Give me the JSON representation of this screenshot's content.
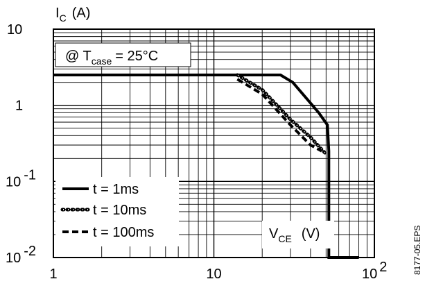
{
  "chart_data": {
    "type": "line",
    "x_scale": "log",
    "y_scale": "log",
    "xlim": [
      1,
      100
    ],
    "ylim": [
      0.01,
      10
    ],
    "grid": true,
    "y_axis_label": {
      "main": "I",
      "sub": "C",
      "unit": "(A)"
    },
    "x_axis_label": {
      "main": "V",
      "sub": "CE",
      "unit": "(V)"
    },
    "annotation": {
      "prefix": "@ T",
      "sub": "case",
      "suffix": "= 25°C"
    },
    "x_ticks": [
      {
        "value": 1,
        "label": "1"
      },
      {
        "value": 10,
        "label": "10"
      },
      {
        "value": 100,
        "base": "10",
        "exp": "2"
      }
    ],
    "y_ticks": [
      {
        "value": 10,
        "label": "10"
      },
      {
        "value": 1,
        "label": "1"
      },
      {
        "value": 0.1,
        "base": "10",
        "exp": "-1"
      },
      {
        "value": 0.01,
        "base": "10",
        "exp": "-2"
      }
    ],
    "legend_position": "bottom-left",
    "series": [
      {
        "name": "t = 1ms",
        "style": "solid",
        "x": [
          1,
          26,
          31,
          45,
          51,
          52,
          52,
          80
        ],
        "y": [
          2.5,
          2.5,
          2.0,
          0.8,
          0.55,
          0.25,
          0.01,
          0.01
        ]
      },
      {
        "name": "t = 10ms",
        "style": "dotted",
        "x": [
          14,
          20,
          30,
          40,
          48,
          50
        ],
        "y": [
          2.5,
          1.6,
          0.65,
          0.38,
          0.25,
          0.23
        ]
      },
      {
        "name": "t = 100ms",
        "style": "dashed",
        "x": [
          14,
          20,
          30,
          40,
          47
        ],
        "y": [
          2.2,
          1.4,
          0.55,
          0.3,
          0.25
        ]
      }
    ],
    "side_text": "8177-05.EPS"
  }
}
